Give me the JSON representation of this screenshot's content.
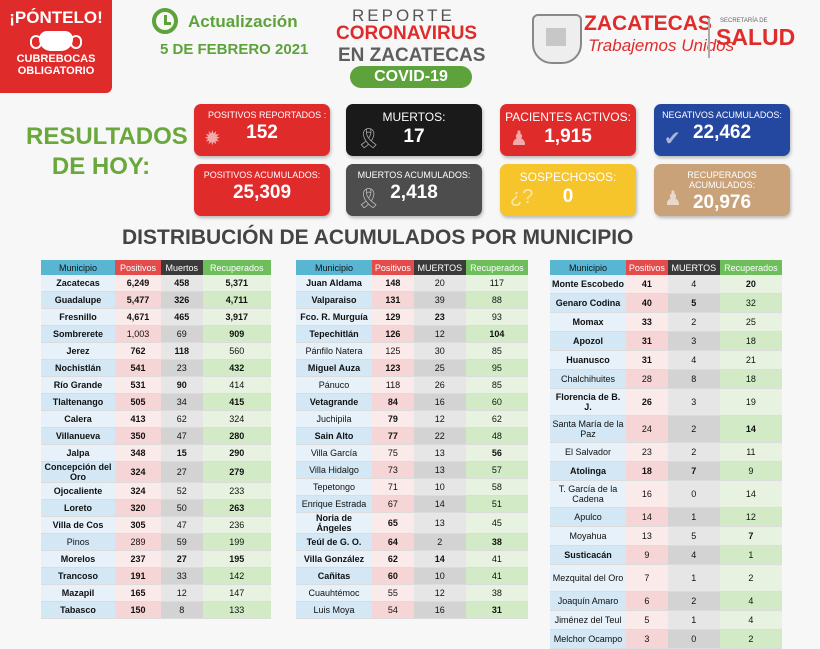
{
  "header": {
    "pontelo_title": "¡PÓNTELO!",
    "pontelo_sub1": "CUBREBOCAS",
    "pontelo_sub2": "OBLIGATORIO",
    "update_label": "Actualización",
    "date": "5 DE FEBRERO 2021",
    "report_line1": "REPORTE",
    "report_line2": "CORONAVIRUS",
    "report_line3": "EN ZACATECAS",
    "covid_badge": "COVID-19",
    "state_name": "ZACATECAS",
    "state_motto": "Trabajemos Unidos",
    "secretaria": "SECRETARÍA DE",
    "salud": "SALUD"
  },
  "results_title_1": "RESULTADOS",
  "results_title_2": "DE HOY:",
  "cards": [
    {
      "label": "POSITIVOS REPORTADOS :",
      "value": "152",
      "color": "#e02b2b"
    },
    {
      "label": "MUERTOS:",
      "value": "17",
      "color": "#1a1a1a"
    },
    {
      "label": "PACIENTES ACTIVOS:",
      "value": "1,915",
      "color": "#e02b2b"
    },
    {
      "label": "NEGATIVOS ACUMULADOS:",
      "value": "22,462",
      "color": "#2447a0"
    },
    {
      "label": "POSITIVOS ACUMULADOS:",
      "value": "25,309",
      "color": "#e02b2b"
    },
    {
      "label": "MUERTOS ACUMULADOS:",
      "value": "2,418",
      "color": "#4d4d4d"
    },
    {
      "label": "SOSPECHOSOS:",
      "value": "0",
      "color": "#f6c42b"
    },
    {
      "label": "RECUPERADOS ACUMULADOS:",
      "value": "20,976",
      "color": "#c9a27a"
    }
  ],
  "distribution_title": "DISTRIBUCIÓN DE ACUMULADOS POR MUNICIPIO",
  "tables": [
    {
      "headers": [
        "Municipio",
        "Positivos",
        "Muertos",
        "Recuperados"
      ],
      "rows": [
        [
          "Zacatecas",
          "6,249",
          "458",
          "5,371"
        ],
        [
          "Guadalupe",
          "5,477",
          "326",
          "4,711"
        ],
        [
          "Fresnillo",
          "4,671",
          "465",
          "3,917"
        ],
        [
          "Sombrerete",
          "1,003",
          "69",
          "909"
        ],
        [
          "Jerez",
          "762",
          "118",
          "560"
        ],
        [
          "Nochistlán",
          "541",
          "23",
          "432"
        ],
        [
          "Río Grande",
          "531",
          "90",
          "414"
        ],
        [
          "Tlaltenango",
          "505",
          "34",
          "415"
        ],
        [
          "Calera",
          "413",
          "62",
          "324"
        ],
        [
          "Villanueva",
          "350",
          "47",
          "280"
        ],
        [
          "Jalpa",
          "348",
          "15",
          "290"
        ],
        [
          "Concepción del Oro",
          "324",
          "27",
          "279"
        ],
        [
          "Ojocaliente",
          "324",
          "52",
          "233"
        ],
        [
          "Loreto",
          "320",
          "50",
          "263"
        ],
        [
          "Villa de Cos",
          "305",
          "47",
          "236"
        ],
        [
          "Pinos",
          "289",
          "59",
          "199"
        ],
        [
          "Morelos",
          "237",
          "27",
          "195"
        ],
        [
          "Trancoso",
          "191",
          "33",
          "142"
        ],
        [
          "Mazapil",
          "165",
          "12",
          "147"
        ],
        [
          "Tabasco",
          "150",
          "8",
          "133"
        ]
      ]
    },
    {
      "headers": [
        "Municipio",
        "Positivos",
        "MUERTOS",
        "Recuperados"
      ],
      "rows": [
        [
          "Juan Aldama",
          "148",
          "20",
          "117"
        ],
        [
          "Valparaiso",
          "131",
          "39",
          "88"
        ],
        [
          "Fco. R. Murguía",
          "129",
          "23",
          "93"
        ],
        [
          "Tepechitlán",
          "126",
          "12",
          "104"
        ],
        [
          "Pánfilo Natera",
          "125",
          "30",
          "85"
        ],
        [
          "Miguel Auza",
          "123",
          "25",
          "95"
        ],
        [
          "Pánuco",
          "118",
          "26",
          "85"
        ],
        [
          "Vetagrande",
          "84",
          "16",
          "60"
        ],
        [
          "Juchipila",
          "79",
          "12",
          "62"
        ],
        [
          "Sain Alto",
          "77",
          "22",
          "48"
        ],
        [
          "Villa García",
          "75",
          "13",
          "56"
        ],
        [
          "Villa Hidalgo",
          "73",
          "13",
          "57"
        ],
        [
          "Tepetongo",
          "71",
          "10",
          "58"
        ],
        [
          "Enrique Estrada",
          "67",
          "14",
          "51"
        ],
        [
          "Noria de Ángeles",
          "65",
          "13",
          "45"
        ],
        [
          "Teúl de G. O.",
          "64",
          "2",
          "38"
        ],
        [
          "Villa González",
          "62",
          "14",
          "41"
        ],
        [
          "Cañitas",
          "60",
          "10",
          "41"
        ],
        [
          "Cuauhtémoc",
          "55",
          "12",
          "38"
        ],
        [
          "Luis Moya",
          "54",
          "16",
          "31"
        ]
      ]
    },
    {
      "headers": [
        "Municipio",
        "Positivos",
        "MUERTOS",
        "Recuperados"
      ],
      "rows": [
        [
          "Monte Escobedo",
          "41",
          "4",
          "20"
        ],
        [
          "Genaro Codina",
          "40",
          "5",
          "32"
        ],
        [
          "Momax",
          "33",
          "2",
          "25"
        ],
        [
          "Apozol",
          "31",
          "3",
          "18"
        ],
        [
          "Huanusco",
          "31",
          "4",
          "21"
        ],
        [
          "Chalchihuites",
          "28",
          "8",
          "18"
        ],
        [
          "Florencia de B. J.",
          "26",
          "3",
          "19"
        ],
        [
          "Santa María de la Paz",
          "24",
          "2",
          "14"
        ],
        [
          "El Salvador",
          "23",
          "2",
          "11"
        ],
        [
          "Atolinga",
          "18",
          "7",
          "9"
        ],
        [
          "T. García de la Cadena",
          "16",
          "0",
          "14"
        ],
        [
          "Apulco",
          "14",
          "1",
          "12"
        ],
        [
          "Moyahua",
          "13",
          "5",
          "7"
        ],
        [
          "Susticacán",
          "9",
          "4",
          "1"
        ],
        [
          "Mezquital del Oro",
          "7",
          "1",
          "2"
        ],
        [
          "Joaquín Amaro",
          "6",
          "2",
          "4"
        ],
        [
          "Jiménez del Teul",
          "5",
          "1",
          "4"
        ],
        [
          "Melchor Ocampo",
          "3",
          "0",
          "2"
        ]
      ]
    }
  ]
}
